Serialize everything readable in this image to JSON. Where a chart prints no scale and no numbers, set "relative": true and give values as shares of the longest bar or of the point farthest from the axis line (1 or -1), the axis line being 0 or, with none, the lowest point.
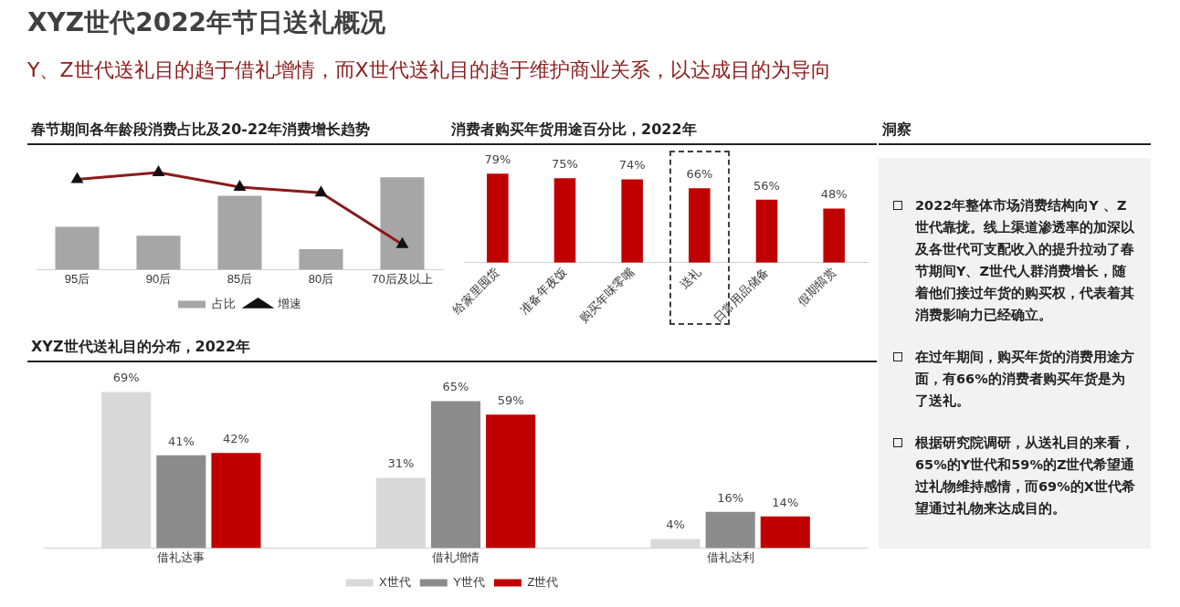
{
  "chart_data": [
    {
      "type": "other",
      "title": "XYZ世代2022年节日送礼概况",
      "subtitle": "Y、Z世代送礼目的趋于借礼增情，而X世代送礼目的趋于维护商业关系，以达成目的为导向"
    },
    {
      "type": "bar",
      "title": "春节期间各年龄段消费占比及20-22年消费增长趋势",
      "relative": true,
      "categories": [
        "95后",
        "90后",
        "85后",
        "80后",
        "70后及以上"
      ],
      "series": [
        {
          "name": "占比",
          "color": "#a6a6a6",
          "values": [
            0.44,
            0.35,
            0.76,
            0.21,
            0.95
          ]
        },
        {
          "name": "增速",
          "type": "line",
          "color": "#8b1a1a",
          "values": [
            0.93,
            1,
            0.85,
            0.79,
            0.26
          ]
        }
      ],
      "marker": "triangle",
      "legend": "bottom",
      "grid": false,
      "tick_labels": "x"
    },
    {
      "type": "bar",
      "title": "消费者购买年货用途百分比，2022年",
      "categories": [
        "给家里囤货",
        "准备年夜饭",
        "购买年味零嘴",
        "送礼",
        "日常用品储备",
        "假期犒赏"
      ],
      "series": [
        {
          "color": "#c00000",
          "values": [
            79,
            75,
            74,
            66,
            56,
            48
          ],
          "value_labels": [
            "79%",
            "75%",
            "74%",
            "66%",
            "56%",
            "48%"
          ]
        }
      ],
      "grid": false,
      "tick_labels": "x"
    },
    {
      "type": "bar",
      "title": "XYZ世代送礼目的分布，2022年",
      "categories": [
        "借礼达事",
        "借礼增情",
        "借礼达利"
      ],
      "series": [
        {
          "name": "X世代",
          "color": "#d9d9d9",
          "values": [
            69,
            31,
            4
          ],
          "value_labels": [
            "69%",
            "31%",
            "4%"
          ]
        },
        {
          "name": "Y世代",
          "color": "#8c8c8c",
          "values": [
            41,
            65,
            16
          ],
          "value_labels": [
            "41%",
            "65%",
            "16%"
          ]
        },
        {
          "name": "Z世代",
          "color": "#c00000",
          "values": [
            42,
            59,
            14
          ],
          "value_labels": [
            "42%",
            "59%",
            "14%"
          ]
        }
      ],
      "legend": "bottom",
      "grid": false,
      "tick_labels": "x"
    },
    {
      "type": "other",
      "title": "洞察",
      "annotations": [
        "2022年整体市场消费结构向Y 、Z世代靠拢。线上渠道渗透率的加深以及各世代可支配收入的提升拉动了春节期间Y、Z世代人群消费增长，随着他们接过年货的购买权，代表着其消费影响力已经确立。",
        "在过年期间，购买年货的消费用途方面，有66%的消费者购买年货是为了送礼。",
        "根据研究院调研，从送礼目的来看，65%的Y世代和59%的Z世代希望通过礼物维持感情，而69%的X世代希望通过礼物来达成目的。"
      ]
    }
  ]
}
